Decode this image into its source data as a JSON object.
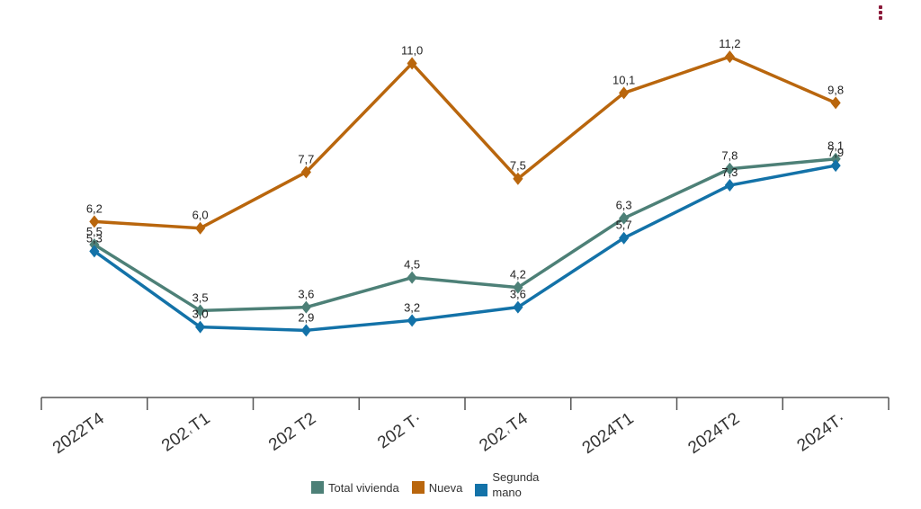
{
  "chart_data": {
    "type": "line",
    "categories": [
      "2022T4",
      "2023T1",
      "2023T2",
      "2023T3",
      "2023T4",
      "2024T1",
      "2024T2",
      "2024T3"
    ],
    "tick_labels": [
      "2022T4",
      "202˓T1",
      "202  T2",
      "202  T·",
      "202˓T4",
      "2024T1",
      "2024T2",
      "2024T·"
    ],
    "series": [
      {
        "name": "Total vivienda",
        "color": "#4d8077",
        "values": [
          5.5,
          3.5,
          3.6,
          4.5,
          4.2,
          6.3,
          7.8,
          8.1
        ],
        "labels": [
          "5,5",
          "3,5",
          "3,6",
          "4,5",
          "4,2",
          "6,3",
          "7,8",
          "8,1"
        ]
      },
      {
        "name": "Nueva",
        "color": "#b9660d",
        "values": [
          6.2,
          6.0,
          7.7,
          11.0,
          7.5,
          10.1,
          11.2,
          9.8
        ],
        "labels": [
          "6,2",
          "6,0",
          "7,7",
          "11,0",
          "7,5",
          "10,1",
          "11,2",
          "9,8"
        ]
      },
      {
        "name": "Segunda\nmano",
        "color": "#1372a8",
        "values": [
          5.3,
          3.0,
          2.9,
          3.2,
          3.6,
          5.7,
          7.3,
          7.9
        ],
        "labels": [
          "5,3",
          "3,0",
          "2,9",
          "3,2",
          "3,6",
          "5,7",
          "7,3",
          "7,9"
        ]
      }
    ],
    "legend_position": "bottom",
    "grid": false
  },
  "legend": {
    "total_label": "Total vivienda",
    "nueva_label": "Nueva",
    "segunda_label_line1": "Segunda",
    "segunda_label_line2": "mano"
  },
  "menu": {
    "icon": "more-vertical-icon",
    "color": "#8b1a3a"
  }
}
